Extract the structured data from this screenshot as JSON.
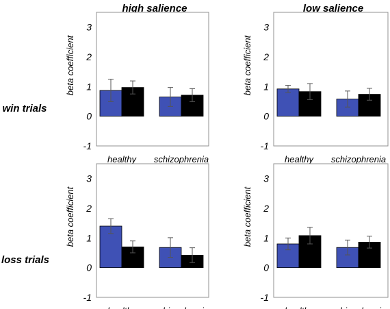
{
  "columns": [
    "high salience",
    "low salience"
  ],
  "rows": [
    "win trials",
    "loss trials"
  ],
  "colors": {
    "series1": "#3f51b5",
    "series2": "#000000",
    "frame": "#909090",
    "error": "#555555"
  },
  "chart_data": [
    {
      "type": "bar",
      "column": "high salience",
      "row": "win trials",
      "categories": [
        "healthy",
        "schizophrenia"
      ],
      "series": [
        {
          "values": [
            0.87,
            0.65
          ],
          "errors": [
            0.38,
            0.32
          ],
          "color": "#3f51b5"
        },
        {
          "values": [
            0.97,
            0.71
          ],
          "errors": [
            0.22,
            0.22
          ],
          "color": "#000000"
        }
      ],
      "ylabel": "beta coefficient",
      "ylim": [
        -1,
        3.5
      ],
      "yticks": [
        -1,
        0,
        1,
        2,
        3
      ]
    },
    {
      "type": "bar",
      "column": "low salience",
      "row": "win trials",
      "categories": [
        "healthy",
        "schizophrenia"
      ],
      "series": [
        {
          "values": [
            0.92,
            0.58
          ],
          "errors": [
            0.12,
            0.27
          ],
          "color": "#3f51b5"
        },
        {
          "values": [
            0.83,
            0.74
          ],
          "errors": [
            0.27,
            0.2
          ],
          "color": "#000000"
        }
      ],
      "ylabel": "beta coefficient",
      "ylim": [
        -1,
        3.5
      ],
      "yticks": [
        -1,
        0,
        1,
        2,
        3
      ]
    },
    {
      "type": "bar",
      "column": "high salience",
      "row": "loss trials",
      "categories": [
        "healthy",
        "schizophrenia"
      ],
      "series": [
        {
          "values": [
            1.4,
            0.68
          ],
          "errors": [
            0.25,
            0.33
          ],
          "color": "#3f51b5"
        },
        {
          "values": [
            0.7,
            0.42
          ],
          "errors": [
            0.2,
            0.25
          ],
          "color": "#000000"
        }
      ],
      "ylabel": "beta coefficient",
      "ylim": [
        -1,
        3.5
      ],
      "yticks": [
        -1,
        0,
        1,
        2,
        3
      ]
    },
    {
      "type": "bar",
      "column": "low salience",
      "row": "loss trials",
      "categories": [
        "healthy",
        "schizophrenia"
      ],
      "series": [
        {
          "values": [
            0.8,
            0.68
          ],
          "errors": [
            0.2,
            0.25
          ],
          "color": "#3f51b5"
        },
        {
          "values": [
            1.08,
            0.86
          ],
          "errors": [
            0.28,
            0.2
          ],
          "color": "#000000"
        }
      ],
      "ylabel": "beta coefficient",
      "ylim": [
        -1,
        3.5
      ],
      "yticks": [
        -1,
        0,
        1,
        2,
        3
      ]
    }
  ]
}
